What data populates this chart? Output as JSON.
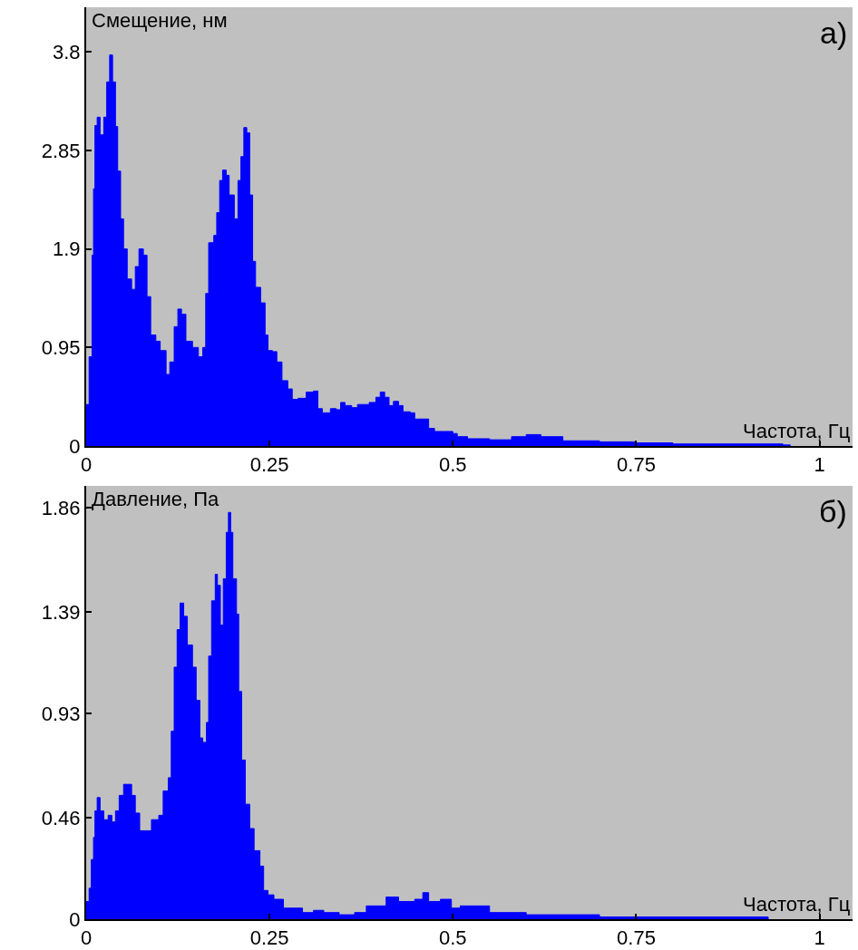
{
  "chart_data": [
    {
      "type": "area",
      "ylabel": "Смещение, нм",
      "xlabel": "Частота, Гц",
      "annotations": [
        "а)"
      ],
      "color": "#0000ff",
      "xlim": [
        0,
        1.045
      ],
      "ylim": [
        0,
        4.23
      ],
      "xticks": [
        0,
        0.25,
        0.5,
        0.75,
        1
      ],
      "yticks": [
        0,
        0.95,
        1.9,
        2.85,
        3.8
      ],
      "grid": false,
      "x": [
        0,
        0.004,
        0.008,
        0.01,
        0.012,
        0.015,
        0.019,
        0.024,
        0.028,
        0.032,
        0.036,
        0.04,
        0.043,
        0.047,
        0.051,
        0.056,
        0.062,
        0.067,
        0.072,
        0.078,
        0.083,
        0.088,
        0.095,
        0.101,
        0.109,
        0.114,
        0.12,
        0.125,
        0.13,
        0.136,
        0.145,
        0.153,
        0.159,
        0.163,
        0.167,
        0.174,
        0.178,
        0.182,
        0.186,
        0.191,
        0.195,
        0.202,
        0.207,
        0.211,
        0.215,
        0.219,
        0.223,
        0.227,
        0.231,
        0.238,
        0.244,
        0.248,
        0.254,
        0.26,
        0.267,
        0.275,
        0.281,
        0.289,
        0.3,
        0.31,
        0.316,
        0.322,
        0.333,
        0.341,
        0.347,
        0.353,
        0.362,
        0.37,
        0.386,
        0.395,
        0.401,
        0.407,
        0.413,
        0.419,
        0.426,
        0.432,
        0.442,
        0.448,
        0.459,
        0.467,
        0.475,
        0.488,
        0.5,
        0.506,
        0.52,
        0.55,
        0.58,
        0.6,
        0.62,
        0.65,
        0.7,
        0.75,
        0.8,
        0.85,
        0.9,
        0.95,
        0.96
      ],
      "values": [
        0.4,
        0.86,
        1.84,
        2.48,
        3.09,
        3.17,
        3.0,
        3.17,
        3.51,
        3.77,
        3.51,
        3.08,
        2.65,
        2.19,
        1.9,
        1.61,
        1.51,
        1.73,
        1.9,
        1.84,
        1.44,
        1.07,
        1.01,
        0.92,
        0.69,
        0.81,
        1.15,
        1.32,
        1.27,
        1.01,
        0.95,
        0.86,
        0.95,
        1.47,
        1.96,
        2.03,
        2.25,
        2.56,
        2.66,
        2.61,
        2.42,
        2.19,
        2.56,
        2.79,
        3.07,
        3.02,
        2.42,
        1.78,
        1.53,
        1.38,
        1.07,
        0.92,
        0.91,
        0.81,
        0.63,
        0.55,
        0.45,
        0.46,
        0.52,
        0.53,
        0.36,
        0.32,
        0.36,
        0.35,
        0.42,
        0.39,
        0.37,
        0.4,
        0.42,
        0.47,
        0.52,
        0.47,
        0.39,
        0.43,
        0.39,
        0.33,
        0.32,
        0.26,
        0.26,
        0.17,
        0.14,
        0.14,
        0.12,
        0.09,
        0.07,
        0.06,
        0.09,
        0.11,
        0.09,
        0.05,
        0.04,
        0.03,
        0.02,
        0.02,
        0.02,
        0.01,
        0
      ]
    },
    {
      "type": "area",
      "ylabel": "Давление, Па",
      "xlabel": "Частота, Гц",
      "annotations": [
        "б)"
      ],
      "color": "#0000ff",
      "xlim": [
        0,
        1.045
      ],
      "ylim": [
        0,
        1.96
      ],
      "xticks": [
        0,
        0.25,
        0.5,
        0.75,
        1
      ],
      "yticks": [
        0,
        0.46,
        0.93,
        1.39,
        1.86
      ],
      "grid": false,
      "x": [
        0,
        0.004,
        0.007,
        0.01,
        0.012,
        0.015,
        0.019,
        0.024,
        0.03,
        0.035,
        0.04,
        0.045,
        0.051,
        0.056,
        0.062,
        0.067,
        0.073,
        0.081,
        0.089,
        0.099,
        0.105,
        0.112,
        0.116,
        0.12,
        0.124,
        0.128,
        0.133,
        0.138,
        0.145,
        0.15,
        0.155,
        0.159,
        0.164,
        0.167,
        0.171,
        0.176,
        0.179,
        0.183,
        0.187,
        0.191,
        0.194,
        0.197,
        0.2,
        0.205,
        0.208,
        0.212,
        0.217,
        0.223,
        0.229,
        0.237,
        0.242,
        0.248,
        0.256,
        0.269,
        0.287,
        0.295,
        0.31,
        0.324,
        0.345,
        0.366,
        0.382,
        0.399,
        0.409,
        0.417,
        0.426,
        0.448,
        0.459,
        0.467,
        0.483,
        0.498,
        0.51,
        0.55,
        0.6,
        0.7,
        0.8,
        0.92,
        0.93
      ],
      "values": [
        0.08,
        0.14,
        0.27,
        0.37,
        0.49,
        0.55,
        0.49,
        0.45,
        0.47,
        0.44,
        0.49,
        0.56,
        0.61,
        0.61,
        0.56,
        0.48,
        0.4,
        0.4,
        0.45,
        0.47,
        0.58,
        0.64,
        0.85,
        1.14,
        1.31,
        1.43,
        1.37,
        1.24,
        1.14,
        0.99,
        0.82,
        0.8,
        0.89,
        1.19,
        1.44,
        1.56,
        1.51,
        1.33,
        1.54,
        1.75,
        1.84,
        1.75,
        1.54,
        1.38,
        1.03,
        0.72,
        0.52,
        0.41,
        0.31,
        0.24,
        0.13,
        0.11,
        0.09,
        0.05,
        0.05,
        0.03,
        0.04,
        0.03,
        0.02,
        0.03,
        0.06,
        0.06,
        0.1,
        0.1,
        0.08,
        0.09,
        0.12,
        0.08,
        0.09,
        0.05,
        0.06,
        0.03,
        0.02,
        0.01,
        0.01,
        0.01,
        0
      ]
    }
  ]
}
